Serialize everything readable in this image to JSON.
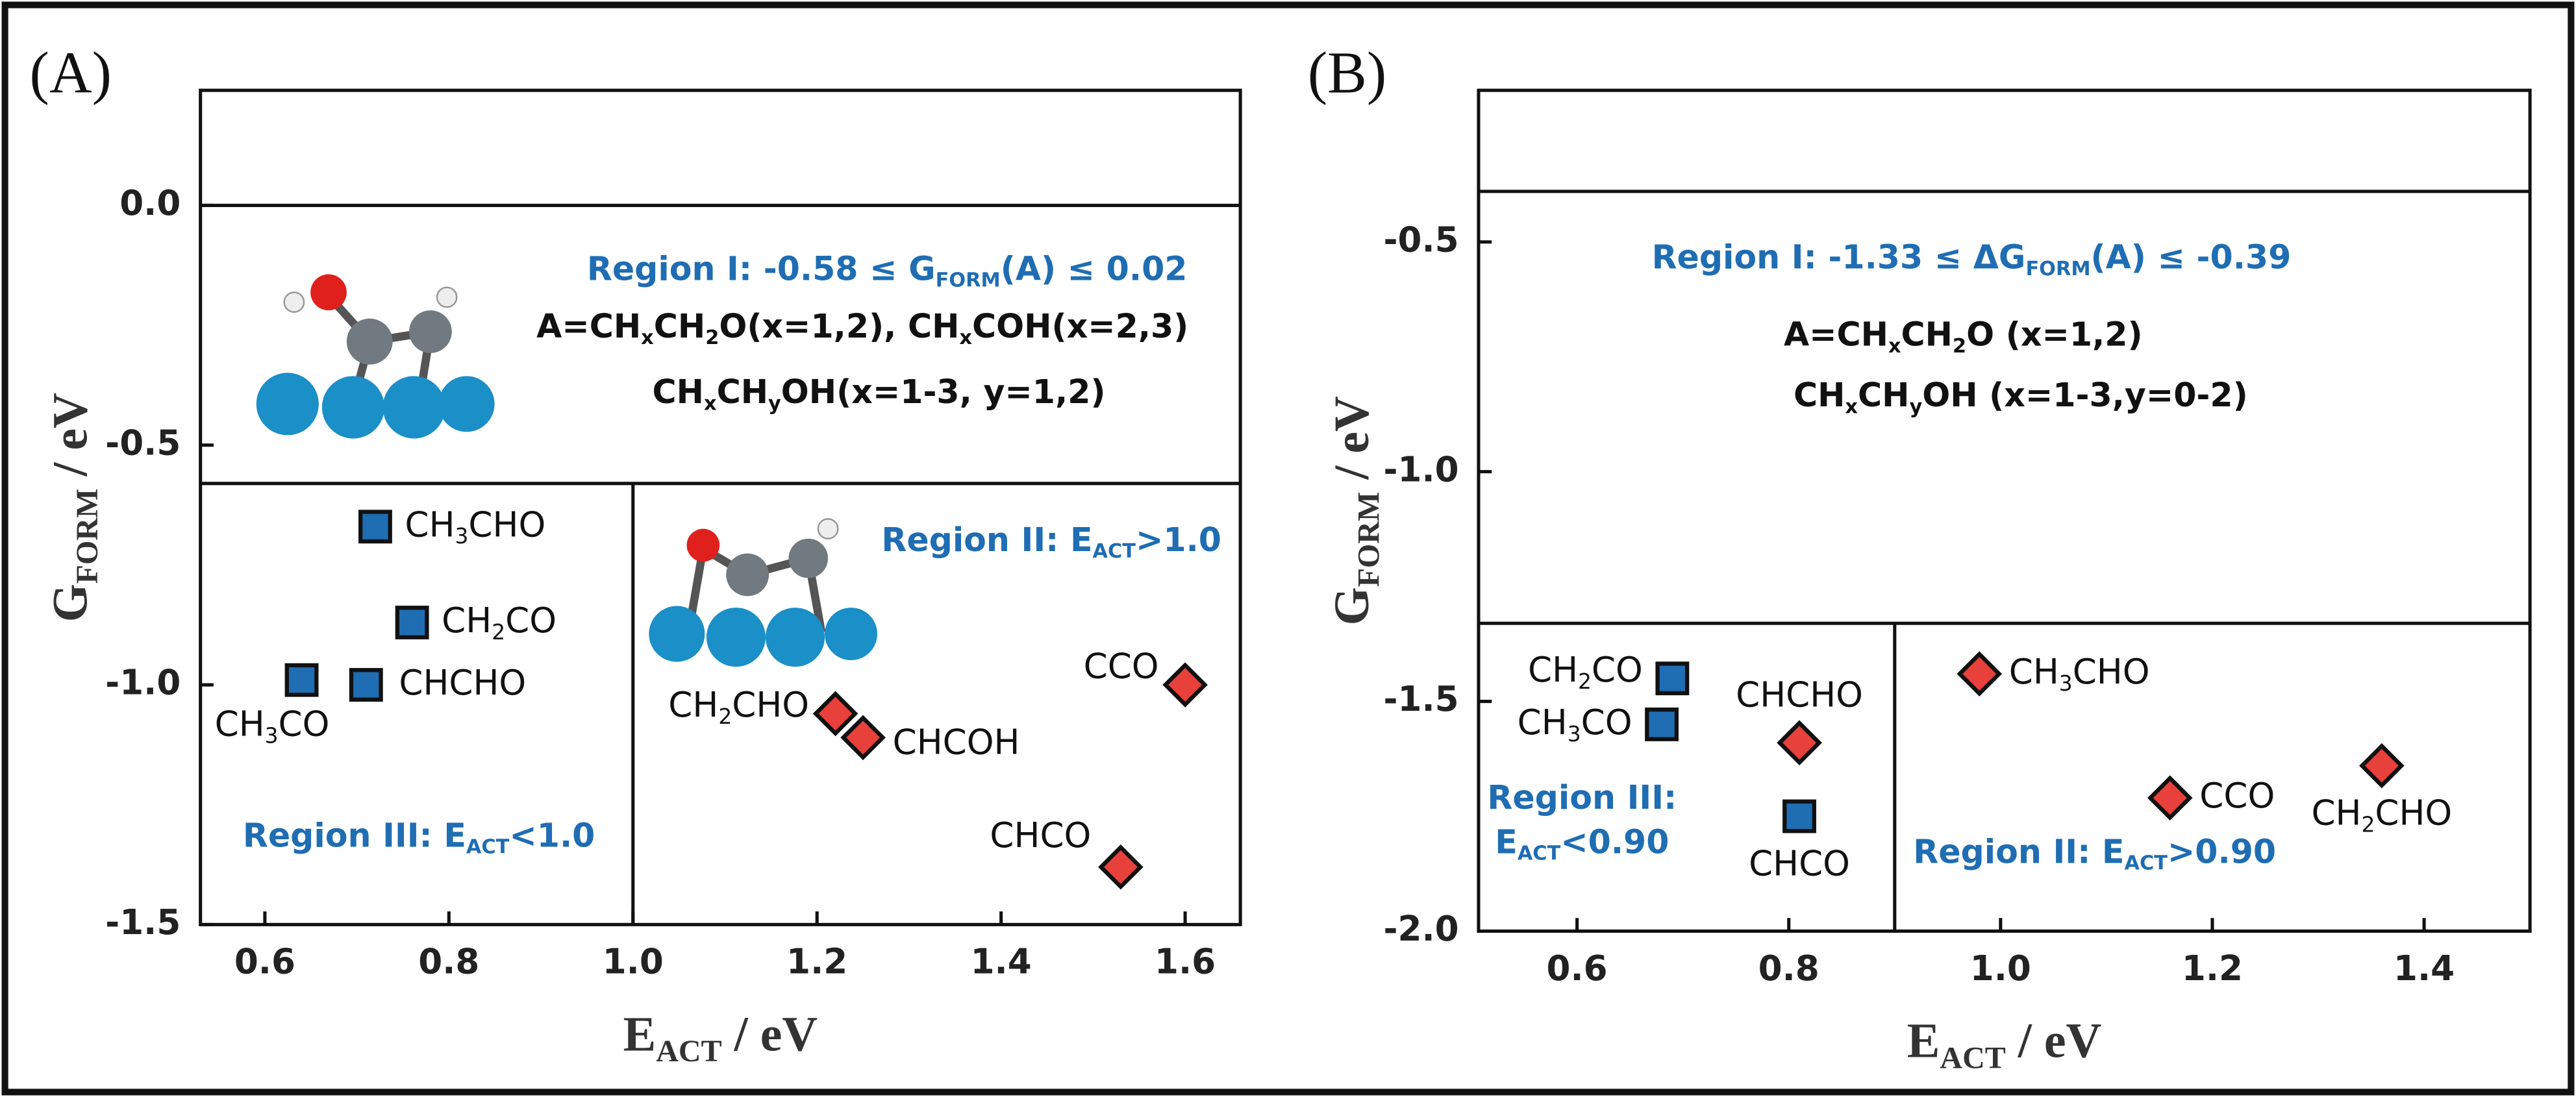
{
  "chart_data": [
    {
      "type": "scatter",
      "panel_label": "(A)",
      "xlabel": [
        "E",
        "ACT",
        " / eV"
      ],
      "ylabel": [
        "G",
        "FORM",
        " / eV"
      ],
      "xlim": [
        0.53,
        1.66
      ],
      "ylim": [
        -1.5,
        0.24
      ],
      "xticks": [
        0.6,
        0.8,
        {
          "value": 1.0,
          "label": "1.0"
        },
        1.2,
        1.4,
        1.6
      ],
      "yticks": [
        {
          "value": 0,
          "label": "0.0"
        },
        -0.5,
        {
          "value": -1.0,
          "label": "-1.0"
        },
        -1.5
      ],
      "hlines": [
        0,
        -0.58
      ],
      "vlines": [
        {
          "x": 1.0,
          "ymax": -0.58
        }
      ],
      "series": [
        {
          "color": "#1f6db3",
          "marker": "square",
          "x": [
            0.72,
            0.76,
            0.71,
            0.64
          ],
          "values": [
            -0.67,
            -0.87,
            -1.0,
            -0.99
          ],
          "labels": [
            [
              "CH",
              "3",
              "CHO"
            ],
            [
              "CH",
              "2",
              "CO"
            ],
            [
              "CHCHO"
            ],
            [
              "CH",
              "3",
              "CO"
            ]
          ]
        },
        {
          "color": "#e8403a",
          "marker": "diamond",
          "x": [
            1.22,
            1.25,
            1.6,
            1.53
          ],
          "values": [
            -1.06,
            -1.11,
            -1.0,
            -1.38
          ],
          "labels": [
            [
              "CH",
              "2",
              "CHO"
            ],
            [
              "CHCOH"
            ],
            [
              "CCO"
            ],
            [
              "CHCO"
            ]
          ]
        }
      ],
      "annotations": [
        {
          "text": [
            "Region I: -0.58 ≤ G",
            "FORM",
            "(A) ≤ 0.02"
          ],
          "color": "#1f6db3"
        },
        {
          "text": [
            "A=CH",
            "x",
            "CH",
            "2",
            "O(x=1,2), CH",
            "x",
            "COH(x=2,3)"
          ],
          "color": "#111111"
        },
        {
          "text": [
            "CH",
            "x",
            "CH",
            "y",
            "OH(x=1-3, y=1,2)"
          ],
          "color": "#111111"
        },
        {
          "text": [
            "Region II: E",
            "ACT",
            ">1.0"
          ],
          "color": "#1f6db3"
        },
        {
          "text": [
            "Region III: E",
            "ACT",
            "<1.0"
          ],
          "color": "#1f6db3"
        }
      ]
    },
    {
      "type": "scatter",
      "panel_label": "(B)",
      "xlabel": [
        "E",
        "ACT",
        " / eV"
      ],
      "ylabel": [
        "G",
        "FORM",
        " / eV"
      ],
      "xlim": [
        0.507,
        1.5
      ],
      "ylim": [
        -2.0,
        -0.17
      ],
      "xticks": [
        0.6,
        0.8,
        {
          "value": 1.0,
          "label": "1.0"
        },
        1.2,
        1.4
      ],
      "yticks": [
        -0.5,
        {
          "value": -1.0,
          "label": "-1.0"
        },
        -1.5,
        {
          "value": -2.0,
          "label": "-2.0"
        }
      ],
      "hlines": [
        -0.39,
        -1.33
      ],
      "vlines": [
        {
          "x": 0.9,
          "ymax": -1.33
        }
      ],
      "series": [
        {
          "color": "#1f6db3",
          "marker": "square",
          "x": [
            0.69,
            0.68,
            0.81
          ],
          "values": [
            -1.45,
            -1.55,
            -1.75
          ],
          "labels": [
            [
              "CH",
              "2",
              "CO"
            ],
            [
              "CH",
              "3",
              "CO"
            ],
            [
              "CHCO"
            ]
          ]
        },
        {
          "color": "#e8403a",
          "marker": "diamond",
          "x": [
            0.98,
            0.81,
            1.16,
            1.36
          ],
          "values": [
            -1.44,
            -1.59,
            -1.71,
            -1.64
          ],
          "labels": [
            [
              "CH",
              "3",
              "CHO"
            ],
            [
              "CHCHO"
            ],
            [
              "CCO"
            ],
            [
              "CH",
              "2",
              "CHO"
            ]
          ]
        }
      ],
      "annotations": [
        {
          "text": [
            "Region I: -1.33 ≤ ΔG",
            "FORM",
            "(A) ≤ -0.39"
          ],
          "color": "#1f6db3"
        },
        {
          "text": [
            "A=CH",
            "x",
            "CH",
            "2",
            "O (x=1,2)"
          ],
          "color": "#111111"
        },
        {
          "text": [
            "CH",
            "x",
            "CH",
            "y",
            "OH (x=1-3,y=0-2)"
          ],
          "color": "#111111"
        },
        {
          "text": [
            "Region III:"
          ],
          "color": "#1f6db3"
        },
        {
          "text": [
            "E",
            "ACT",
            "<0.90"
          ],
          "color": "#1f6db3"
        },
        {
          "text": [
            "Region II: E",
            "ACT",
            ">0.90"
          ],
          "color": "#1f6db3"
        }
      ]
    }
  ]
}
